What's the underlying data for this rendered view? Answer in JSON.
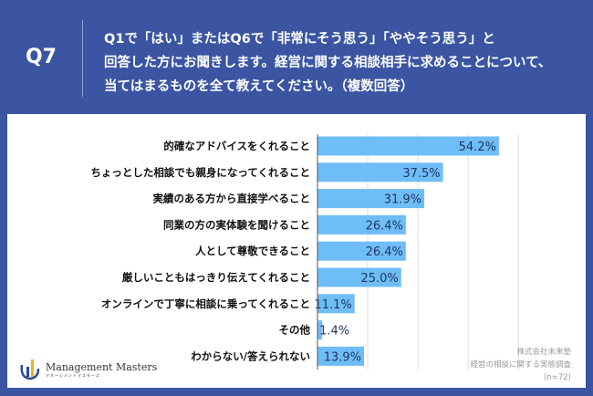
{
  "header": {
    "number": "Q7",
    "question_lines": [
      "Q1で「はい」またはQ6で「非常にそう思う」「ややそう思う」と",
      "回答した方にお聞きします。経営に関する相談相手に求めることについて、",
      "当てはまるものを全て教えてください。（複数回答）"
    ]
  },
  "chart_data": {
    "type": "bar",
    "orientation": "horizontal",
    "categories": [
      "的確なアドバイスをくれること",
      "ちょっとした相談でも親身になってくれること",
      "実績のある方から直接学べること",
      "同業の方の実体験を聞けること",
      "人として尊敬できること",
      "厳しいこともはっきり伝えてくれること",
      "オンラインで丁寧に相談に乗ってくれること",
      "その他",
      "わからない/答えられない"
    ],
    "values": [
      54.2,
      37.5,
      31.9,
      26.4,
      26.4,
      25.0,
      11.1,
      1.4,
      13.9
    ],
    "labels": [
      "54.2%",
      "37.5%",
      "31.9%",
      "26.4%",
      "26.4%",
      "25.0%",
      "11.1%",
      "1.4%",
      "13.9%"
    ],
    "xlim": [
      0,
      60
    ],
    "gridlines": [
      15,
      30,
      45,
      60
    ],
    "bar_color": "#6fbdf7"
  },
  "logo": {
    "name": "Management Masters",
    "sub": "マネージメントマスターズ"
  },
  "source": {
    "company": "株式会社未来塾",
    "survey": "経営の相談に関する実態調査",
    "n": "(n=72)"
  }
}
